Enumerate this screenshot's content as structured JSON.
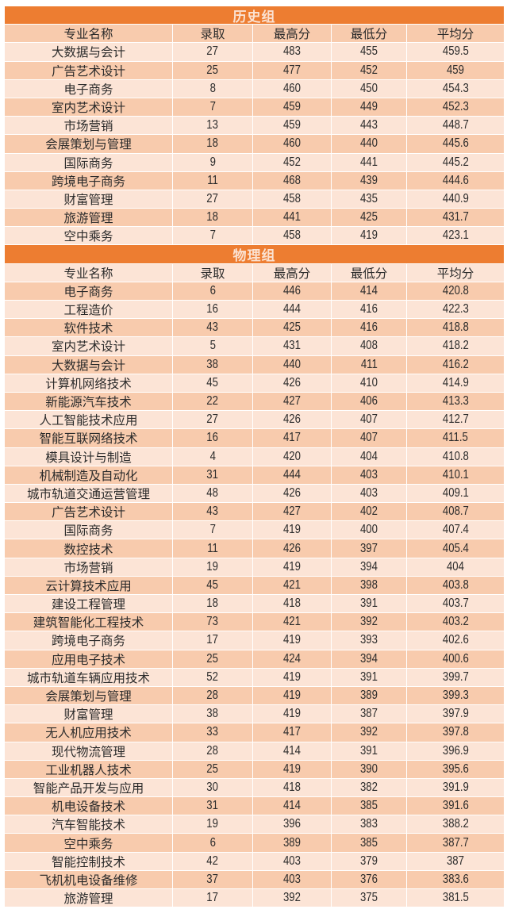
{
  "colors": {
    "title_bg": "#ED7D31",
    "row_medium": "#F8CBAD",
    "row_light": "#FCE4D6"
  },
  "sections": [
    {
      "title": "历史组",
      "headers": [
        "专业名称",
        "录取",
        "最高分",
        "最低分",
        "平均分"
      ],
      "rows": [
        [
          "大数据与会计",
          "27",
          "483",
          "455",
          "459.5"
        ],
        [
          "广告艺术设计",
          "25",
          "477",
          "452",
          "459"
        ],
        [
          "电子商务",
          "8",
          "460",
          "450",
          "454.3"
        ],
        [
          "室内艺术设计",
          "7",
          "459",
          "449",
          "452.3"
        ],
        [
          "市场营销",
          "13",
          "459",
          "443",
          "448.7"
        ],
        [
          "会展策划与管理",
          "18",
          "460",
          "440",
          "445.6"
        ],
        [
          "国际商务",
          "9",
          "452",
          "441",
          "445.2"
        ],
        [
          "跨境电子商务",
          "11",
          "468",
          "439",
          "444.6"
        ],
        [
          "财富管理",
          "27",
          "458",
          "435",
          "440.9"
        ],
        [
          "旅游管理",
          "18",
          "441",
          "425",
          "431.7"
        ],
        [
          "空中乘务",
          "7",
          "458",
          "419",
          "423.1"
        ]
      ]
    },
    {
      "title": "物理组",
      "headers": [
        "专业名称",
        "录取",
        "最高分",
        "最低分",
        "平均分"
      ],
      "rows": [
        [
          "电子商务",
          "6",
          "446",
          "414",
          "420.8"
        ],
        [
          "工程造价",
          "16",
          "444",
          "416",
          "422.3"
        ],
        [
          "软件技术",
          "43",
          "425",
          "416",
          "418.8"
        ],
        [
          "室内艺术设计",
          "5",
          "431",
          "408",
          "418.2"
        ],
        [
          "大数据与会计",
          "38",
          "440",
          "411",
          "416.2"
        ],
        [
          "计算机网络技术",
          "45",
          "426",
          "410",
          "414.9"
        ],
        [
          "新能源汽车技术",
          "22",
          "427",
          "406",
          "413.3"
        ],
        [
          "人工智能技术应用",
          "27",
          "426",
          "407",
          "412.7"
        ],
        [
          "智能互联网络技术",
          "16",
          "417",
          "407",
          "411.5"
        ],
        [
          "模具设计与制造",
          "4",
          "420",
          "404",
          "410.8"
        ],
        [
          "机械制造及自动化",
          "31",
          "444",
          "403",
          "410.1"
        ],
        [
          "城市轨道交通运营管理",
          "48",
          "426",
          "403",
          "409.1"
        ],
        [
          "广告艺术设计",
          "43",
          "427",
          "402",
          "408.7"
        ],
        [
          "国际商务",
          "7",
          "419",
          "400",
          "407.4"
        ],
        [
          "数控技术",
          "11",
          "426",
          "397",
          "405.4"
        ],
        [
          "市场营销",
          "19",
          "419",
          "394",
          "404"
        ],
        [
          "云计算技术应用",
          "45",
          "421",
          "398",
          "403.8"
        ],
        [
          "建设工程管理",
          "18",
          "418",
          "391",
          "403.7"
        ],
        [
          "建筑智能化工程技术",
          "73",
          "421",
          "392",
          "403.2"
        ],
        [
          "跨境电子商务",
          "17",
          "419",
          "393",
          "402.6"
        ],
        [
          "应用电子技术",
          "25",
          "424",
          "394",
          "400.6"
        ],
        [
          "城市轨道车辆应用技术",
          "52",
          "419",
          "391",
          "399.7"
        ],
        [
          "会展策划与管理",
          "28",
          "419",
          "389",
          "399.3"
        ],
        [
          "财富管理",
          "38",
          "419",
          "387",
          "397.9"
        ],
        [
          "无人机应用技术",
          "33",
          "417",
          "392",
          "397.8"
        ],
        [
          "现代物流管理",
          "28",
          "414",
          "391",
          "396.9"
        ],
        [
          "工业机器人技术",
          "25",
          "419",
          "390",
          "395.6"
        ],
        [
          "智能产品开发与应用",
          "30",
          "418",
          "382",
          "391.9"
        ],
        [
          "机电设备技术",
          "31",
          "414",
          "385",
          "391.6"
        ],
        [
          "汽车智能技术",
          "19",
          "396",
          "383",
          "388.2"
        ],
        [
          "空中乘务",
          "6",
          "389",
          "385",
          "387.7"
        ],
        [
          "智能控制技术",
          "42",
          "403",
          "379",
          "387"
        ],
        [
          "飞机机电设备维修",
          "37",
          "403",
          "376",
          "383.6"
        ],
        [
          "旅游管理",
          "17",
          "392",
          "375",
          "381.5"
        ]
      ]
    }
  ]
}
